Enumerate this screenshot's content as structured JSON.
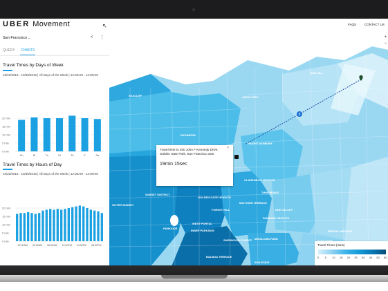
{
  "app": {
    "logo_brand": "UBER",
    "logo_product": "Movement"
  },
  "topnav": {
    "faqs": "FAQS",
    "contact": "CONTACT US"
  },
  "panel": {
    "city": "San Francisco",
    "tabs": [
      {
        "label": "QUERY",
        "active": false
      },
      {
        "label": "CHARTS",
        "active": true
      }
    ]
  },
  "charts": {
    "days": {
      "title": "Travel Times by Days of Week",
      "subtitle": "10/23/2016 - 10/30/2016 | All Days of the Week | 12:00AM - 12:00AM"
    },
    "hours": {
      "title": "Travel Times by Hours of Day",
      "subtitle": "10/23/2016 - 10/30/2016 | All Days of the Week | 12:00AM - 12:00AM"
    }
  },
  "chart_data": [
    {
      "type": "bar",
      "title": "Travel Times by Days of Week",
      "categories": [
        "Su",
        "M",
        "Tu",
        "W",
        "Th",
        "F",
        "Sa"
      ],
      "values": [
        19,
        20.5,
        20,
        20,
        21.5,
        20,
        19.5
      ],
      "ylim": [
        0,
        25
      ],
      "y_ticks": [
        "0 min",
        "5 min",
        "10 min",
        "15 min",
        "20 min"
      ],
      "grid": true,
      "color": "#1ba1e2"
    },
    {
      "type": "bar",
      "title": "Travel Times by Hours of Day",
      "x_tick_labels": [
        "12:00AM",
        "04:00AM",
        "08:00AM",
        "12:00PM",
        "04:00PM",
        "08:00PM"
      ],
      "values": [
        16.5,
        17,
        17,
        17.5,
        17,
        16.5,
        17,
        18.5,
        19,
        19.5,
        19,
        19.5,
        19,
        19.5,
        20,
        20.5,
        21,
        21.5,
        21,
        20,
        19,
        18.5,
        18,
        17
      ],
      "ylim": [
        0,
        25
      ],
      "y_ticks": [
        "0 min",
        "5 min",
        "10 min",
        "15 min",
        "20 min"
      ],
      "grid": true,
      "color": "#1ba1e2"
    }
  ],
  "map": {
    "labels": [
      "SEACLIFF",
      "RICHMOND",
      "SUNSET DISTRICT",
      "GOLDEN GATE HEIGHTS",
      "FOREST HILL",
      "PARKSIDE",
      "WEST PORTAL",
      "INNER PARKSIDE",
      "MIDTOWN TERRACE",
      "CLARENDON HEIGHTS",
      "TWIN PEAKS",
      "NOE VALLEY",
      "DIAMOND HEIGHTS",
      "SHERWOOD FOREST",
      "MIRALOMA PARK",
      "GLEN PARK",
      "BERNAL HEIGHTS",
      "BALBOA TERRACE",
      "INGLESIDE",
      "ANZA VISTA",
      "HAIGHT ASHBURY",
      "NOB HILL",
      "OUTER SUNSET"
    ],
    "route_badge": "8",
    "zoom_in": "+",
    "zoom_out": "−"
  },
  "popup": {
    "text": "Travel time to 200 John F Kennedy Drive, Golden Gate Park, San Francisco was",
    "time": "19min 15sec",
    "close": "×"
  },
  "legend": {
    "title": "Travel Times (mins)",
    "ticks": [
      "0",
      "5",
      "10",
      "15",
      "20",
      "25",
      "30",
      "40",
      "50",
      "60"
    ],
    "colors": [
      "#d7f0fb",
      "#054d7a"
    ]
  }
}
